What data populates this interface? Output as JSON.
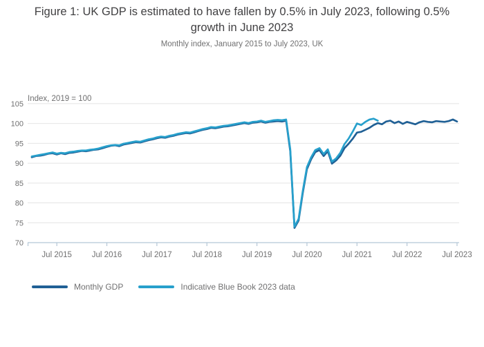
{
  "figure": {
    "title": "Figure 1: UK GDP is estimated to have fallen by 0.5% in July 2023, following 0.5% growth in June 2023",
    "subtitle": "Monthly index, January 2015 to July 2023, UK"
  },
  "chart_data": {
    "type": "line",
    "title": "Figure 1: UK GDP is estimated to have fallen by 0.5% in July 2023, following 0.5% growth in June 2023",
    "subtitle": "Monthly index, January 2015 to July 2023, UK",
    "axis_note": "Index, 2019 = 100",
    "x_start": "2015-01",
    "x_end": "2023-07",
    "x_unit": "month",
    "ylim": [
      70,
      105
    ],
    "y_ticks": [
      70,
      75,
      80,
      85,
      90,
      95,
      100,
      105
    ],
    "grid": "horizontal",
    "legend_position": "bottom-left",
    "x_ticks": [
      {
        "label": "Jul 2015",
        "month_index": 6
      },
      {
        "label": "Jul 2016",
        "month_index": 18
      },
      {
        "label": "Jul 2017",
        "month_index": 30
      },
      {
        "label": "Jul 2018",
        "month_index": 42
      },
      {
        "label": "Jul 2019",
        "month_index": 54
      },
      {
        "label": "Jul 2020",
        "month_index": 66
      },
      {
        "label": "Jul 2021",
        "month_index": 78
      },
      {
        "label": "Jul 2022",
        "month_index": 90
      },
      {
        "label": "Jul 2023",
        "month_index": 102
      }
    ],
    "series": [
      {
        "name": "Monthly GDP",
        "color": "#206095",
        "start_month_index": 0,
        "values": [
          91.5,
          91.8,
          91.9,
          92.1,
          92.4,
          92.5,
          92.2,
          92.5,
          92.3,
          92.6,
          92.7,
          92.9,
          93.1,
          93.0,
          93.2,
          93.4,
          93.5,
          93.8,
          94.1,
          94.4,
          94.5,
          94.3,
          94.7,
          94.9,
          95.1,
          95.3,
          95.2,
          95.5,
          95.8,
          96.0,
          96.3,
          96.5,
          96.4,
          96.7,
          96.9,
          97.2,
          97.4,
          97.6,
          97.5,
          97.8,
          98.1,
          98.4,
          98.6,
          98.9,
          98.8,
          99.0,
          99.2,
          99.3,
          99.5,
          99.7,
          99.9,
          100.1,
          99.9,
          100.2,
          100.3,
          100.5,
          100.2,
          100.4,
          100.5,
          100.6,
          100.5,
          100.7,
          93.0,
          73.7,
          75.6,
          82.5,
          88.5,
          91.0,
          92.8,
          93.3,
          91.8,
          93.0,
          89.9,
          90.7,
          91.9,
          93.8,
          94.9,
          96.2,
          97.7,
          97.9,
          98.4,
          98.9,
          99.6,
          100.1,
          99.8,
          100.5,
          100.7,
          100.1,
          100.5,
          99.9,
          100.4,
          100.1,
          99.8,
          100.3,
          100.6,
          100.4,
          100.3,
          100.6,
          100.5,
          100.4,
          100.6,
          101.0,
          100.5
        ]
      },
      {
        "name": "Indicative Blue Book 2023 data",
        "color": "#27a0cc",
        "start_month_index": 0,
        "values": [
          91.7,
          91.9,
          92.1,
          92.3,
          92.5,
          92.7,
          92.4,
          92.6,
          92.5,
          92.8,
          92.9,
          93.1,
          93.2,
          93.2,
          93.4,
          93.5,
          93.7,
          94.0,
          94.3,
          94.5,
          94.6,
          94.5,
          94.9,
          95.1,
          95.3,
          95.5,
          95.4,
          95.7,
          96.0,
          96.2,
          96.5,
          96.7,
          96.6,
          96.9,
          97.1,
          97.4,
          97.6,
          97.8,
          97.7,
          98.0,
          98.3,
          98.6,
          98.8,
          99.1,
          99.0,
          99.2,
          99.4,
          99.5,
          99.7,
          99.9,
          100.1,
          100.3,
          100.1,
          100.4,
          100.5,
          100.7,
          100.4,
          100.6,
          100.8,
          100.9,
          100.8,
          101.0,
          93.5,
          74.0,
          76.0,
          83.0,
          89.0,
          91.5,
          93.3,
          93.8,
          92.3,
          93.5,
          90.4,
          91.2,
          92.6,
          94.8,
          96.2,
          98.0,
          100.0,
          99.6,
          100.4,
          101.0,
          101.2,
          100.7
        ]
      }
    ]
  },
  "colors": {
    "title_text": "#414042",
    "muted_text": "#707071",
    "gridline": "#e4e4e4",
    "axis": "#b4c6d6"
  }
}
